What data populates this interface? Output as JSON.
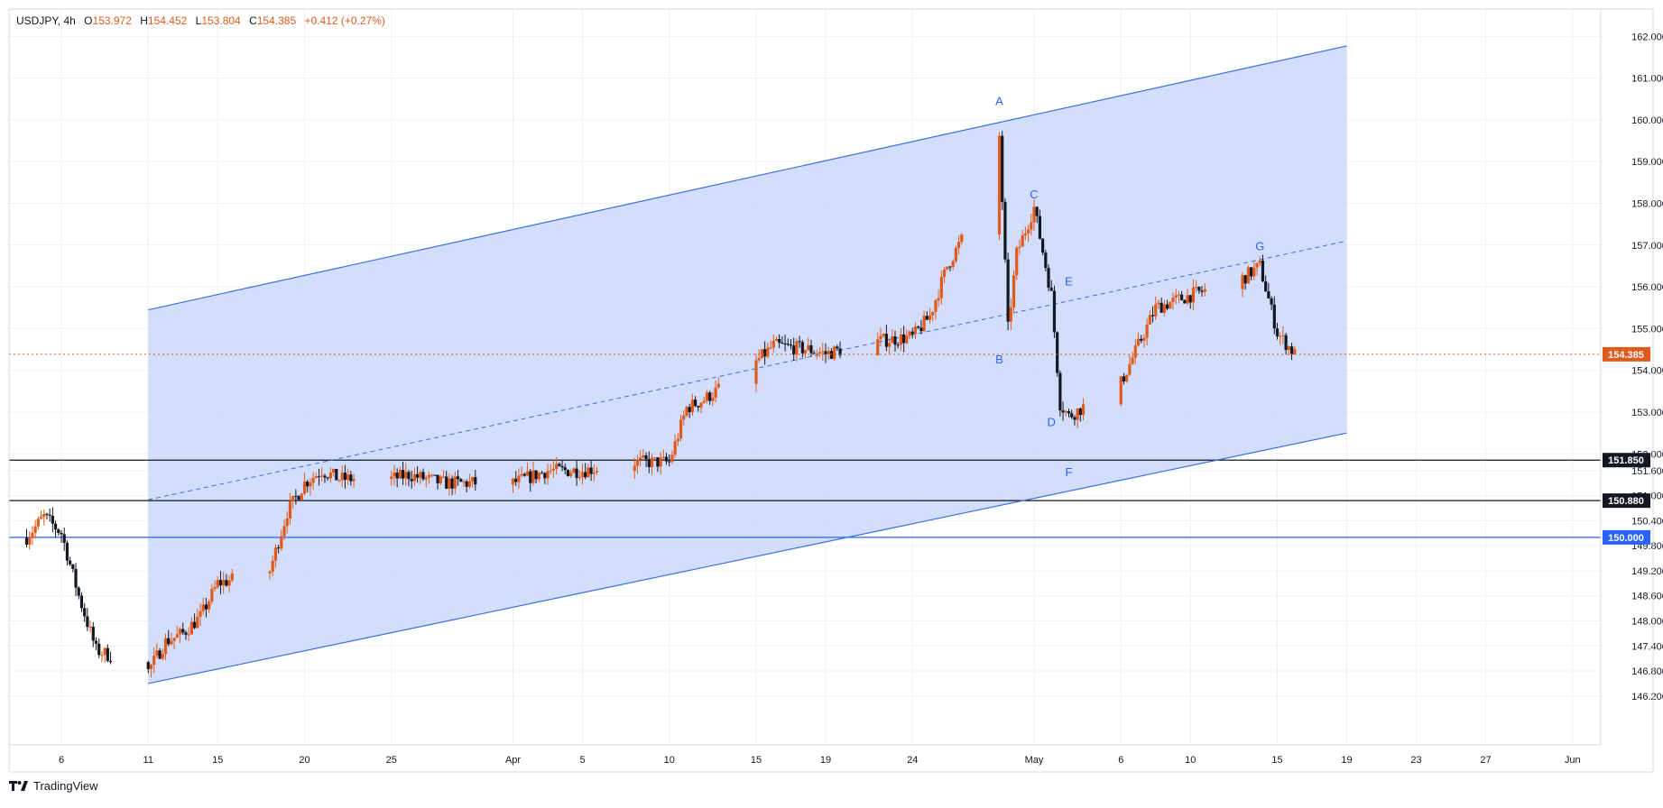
{
  "header": {
    "symbol": "USDJPY",
    "interval": "4h",
    "open_label": "O",
    "open": "153.972",
    "high_label": "H",
    "high": "154.452",
    "low_label": "L",
    "low": "153.804",
    "close_label": "C",
    "close": "154.385",
    "change": "+0.412 (+0.27%)"
  },
  "branding": {
    "name": "TradingView",
    "logo_icon": "tradingview-logo-icon"
  },
  "colors": {
    "up": "#e05a1c",
    "down": "#131722",
    "channel_fill": "#c5d5fb",
    "channel_line": "#3b6fe0",
    "last_price": "#e05a1c",
    "level_line": "#131722",
    "level_blue": "#2962ff",
    "grid": "#eef0f3"
  },
  "chart_data": {
    "type": "candlestick",
    "symbol": "USDJPY",
    "interval": "4h",
    "y_axis": {
      "ylim": [
        145.75,
        162.45
      ],
      "ticks": [
        "146.200",
        "146.800",
        "147.400",
        "148.000",
        "148.600",
        "149.200",
        "149.800",
        "150.400",
        "151.000",
        "151.600",
        "152.000",
        "153.000",
        "154.000",
        "155.000",
        "156.000",
        "157.000",
        "158.000",
        "159.000",
        "160.000",
        "161.000",
        "162.000"
      ],
      "tick_values": [
        146.2,
        146.8,
        147.4,
        148.0,
        148.6,
        149.2,
        149.8,
        150.4,
        151.0,
        151.6,
        152.0,
        153.0,
        154.0,
        155.0,
        156.0,
        157.0,
        158.0,
        159.0,
        160.0,
        161.0,
        162.0
      ]
    },
    "x_axis": {
      "tick_labels": [
        "6",
        "11",
        "15",
        "20",
        "25",
        "Apr",
        "5",
        "10",
        "15",
        "19",
        "24",
        "May",
        "6",
        "10",
        "15",
        "19",
        "23",
        "27",
        "Jun"
      ],
      "tick_dates": [
        "2024-03-06",
        "2024-03-11",
        "2024-03-15",
        "2024-03-20",
        "2024-03-25",
        "2024-04-01",
        "2024-04-05",
        "2024-04-10",
        "2024-04-15",
        "2024-04-19",
        "2024-04-24",
        "2024-05-01",
        "2024-05-06",
        "2024-05-10",
        "2024-05-15",
        "2024-05-19",
        "2024-05-23",
        "2024-05-27",
        "2024-06-01"
      ]
    },
    "price_path": [
      [
        "2024-03-04",
        150.0
      ],
      [
        "2024-03-05",
        150.5
      ],
      [
        "2024-03-06",
        150.1
      ],
      [
        "2024-03-07",
        148.6
      ],
      [
        "2024-03-08",
        147.3
      ],
      [
        "2024-03-11",
        146.8
      ],
      [
        "2024-03-12",
        147.5
      ],
      [
        "2024-03-13",
        147.7
      ],
      [
        "2024-03-14",
        148.1
      ],
      [
        "2024-03-15",
        148.9
      ],
      [
        "2024-03-18",
        149.2
      ],
      [
        "2024-03-19",
        150.6
      ],
      [
        "2024-03-20",
        151.3
      ],
      [
        "2024-03-21",
        151.6
      ],
      [
        "2024-03-22",
        151.4
      ],
      [
        "2024-03-25",
        151.4
      ],
      [
        "2024-03-26",
        151.5
      ],
      [
        "2024-03-27",
        151.4
      ],
      [
        "2024-03-28",
        151.3
      ],
      [
        "2024-04-01",
        151.3
      ],
      [
        "2024-04-03",
        151.6
      ],
      [
        "2024-04-05",
        151.6
      ],
      [
        "2024-04-08",
        151.8
      ],
      [
        "2024-04-10",
        151.8
      ],
      [
        "2024-04-11",
        153.1
      ],
      [
        "2024-04-12",
        153.3
      ],
      [
        "2024-04-15",
        154.2
      ],
      [
        "2024-04-16",
        154.6
      ],
      [
        "2024-04-18",
        154.5
      ],
      [
        "2024-04-19",
        154.4
      ],
      [
        "2024-04-22",
        154.7
      ],
      [
        "2024-04-24",
        154.8
      ],
      [
        "2024-04-25",
        155.3
      ],
      [
        "2024-04-26",
        156.5
      ],
      [
        "2024-04-28",
        158.0
      ],
      [
        "2024-04-29",
        159.6
      ],
      [
        "2024-04-29T12",
        155.0
      ],
      [
        "2024-04-30",
        156.8
      ],
      [
        "2024-05-01",
        157.9
      ],
      [
        "2024-05-02",
        155.8
      ],
      [
        "2024-05-02T12",
        153.2
      ],
      [
        "2024-05-03",
        152.9
      ],
      [
        "2024-05-06",
        153.7
      ],
      [
        "2024-05-07",
        154.6
      ],
      [
        "2024-05-08",
        155.5
      ],
      [
        "2024-05-10",
        155.8
      ],
      [
        "2024-05-13",
        156.2
      ],
      [
        "2024-05-14",
        156.5
      ],
      [
        "2024-05-15",
        154.9
      ],
      [
        "2024-05-16",
        154.39
      ]
    ],
    "last_price": 154.385,
    "horizontal_levels": [
      {
        "value": 151.85,
        "label": "151.850",
        "style": "black"
      },
      {
        "value": 150.88,
        "label": "150.880",
        "style": "black"
      },
      {
        "value": 150.0,
        "label": "150.000",
        "style": "blue"
      }
    ],
    "wave_labels": [
      {
        "label": "A",
        "date": "2024-04-29",
        "price": 160.22
      },
      {
        "label": "B",
        "date": "2024-04-29",
        "price": 154.55
      },
      {
        "label": "C",
        "date": "2024-05-01",
        "price": 157.99
      },
      {
        "label": "D",
        "date": "2024-05-02",
        "price": 153.05
      },
      {
        "label": "E",
        "date": "2024-05-03",
        "price": 155.9
      },
      {
        "label": "F",
        "date": "2024-05-03",
        "price": 151.86
      },
      {
        "label": "G",
        "date": "2024-05-14",
        "price": 156.75
      }
    ],
    "channel": {
      "lower": [
        [
          "2024-03-11",
          146.5
        ],
        [
          "2024-05-19",
          152.5
        ]
      ],
      "upper": [
        [
          "2024-03-11",
          155.45
        ],
        [
          "2024-05-19",
          161.77
        ]
      ],
      "mid": [
        [
          "2024-03-11",
          150.9
        ],
        [
          "2024-05-19",
          157.1
        ]
      ]
    }
  }
}
